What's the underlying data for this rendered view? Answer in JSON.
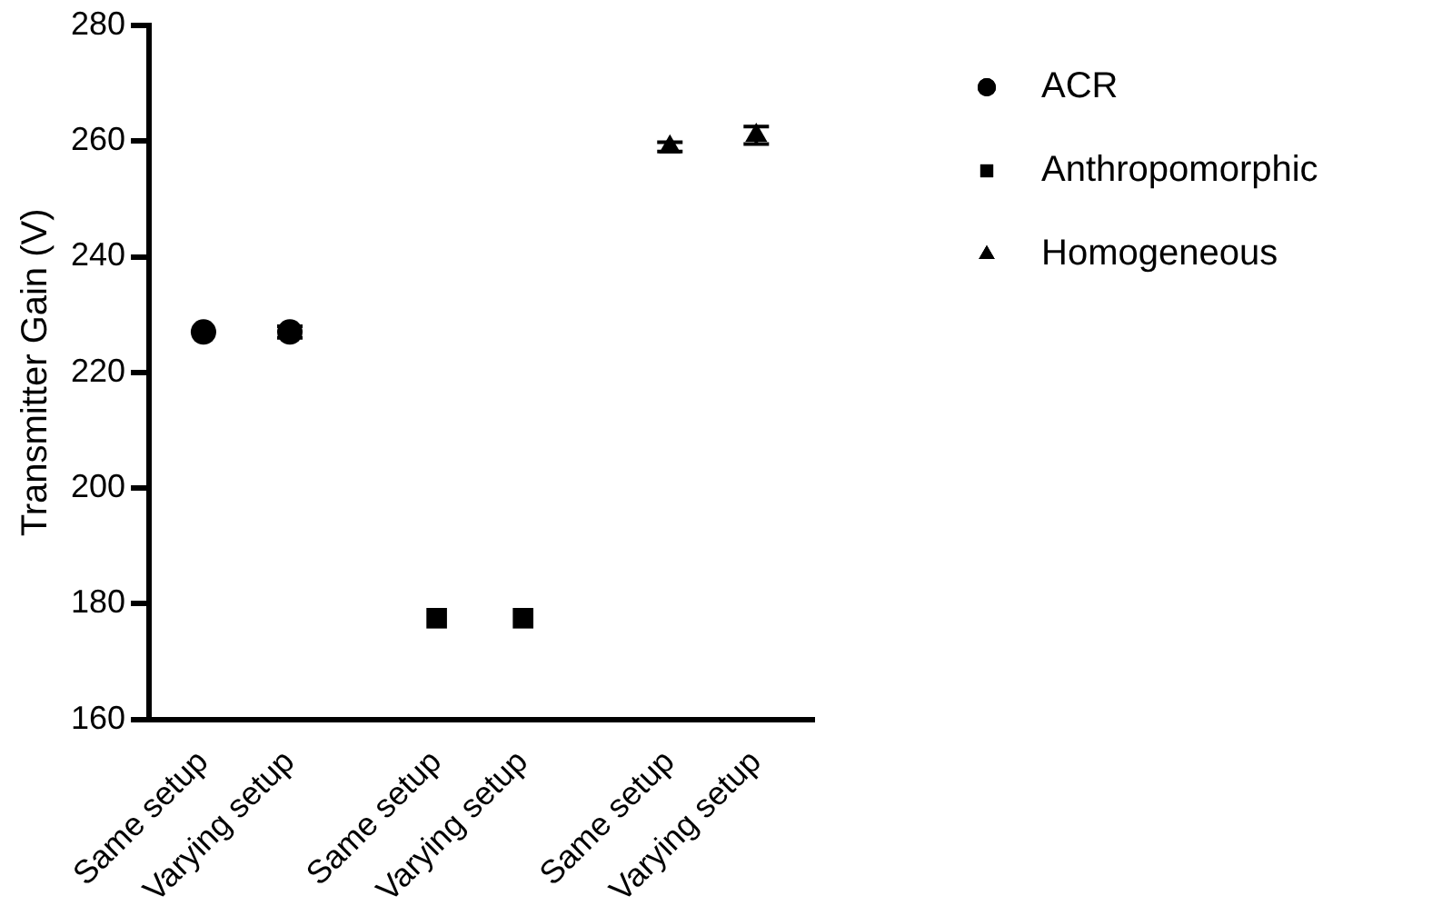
{
  "chart_data": {
    "type": "scatter",
    "ylabel": "Transmitter Gain (V)",
    "categories": [
      "Same setup",
      "Varying setup",
      "Same setup",
      "Varying setup",
      "Same setup",
      "Varying setup"
    ],
    "series": [
      {
        "name": "ACR",
        "color": "#000000",
        "marker": "circle",
        "values": [
          227,
          227,
          null,
          null,
          null,
          null
        ],
        "errors": [
          null,
          1,
          null,
          null,
          null,
          null
        ]
      },
      {
        "name": "Anthropomorphic",
        "color": "#000000",
        "marker": "square",
        "values": [
          null,
          null,
          177.5,
          177.5,
          null,
          null
        ],
        "errors": [
          null,
          null,
          null,
          null,
          null,
          null
        ]
      },
      {
        "name": "Homogeneous",
        "color": "#000000",
        "marker": "triangle",
        "values": [
          null,
          null,
          null,
          null,
          259,
          261
        ],
        "errors": [
          null,
          null,
          null,
          null,
          0.8,
          1.5
        ]
      }
    ],
    "ylim": [
      160,
      280
    ],
    "yticks": [
      160,
      180,
      200,
      220,
      240,
      260,
      280
    ],
    "grid": false,
    "legend": "right"
  }
}
